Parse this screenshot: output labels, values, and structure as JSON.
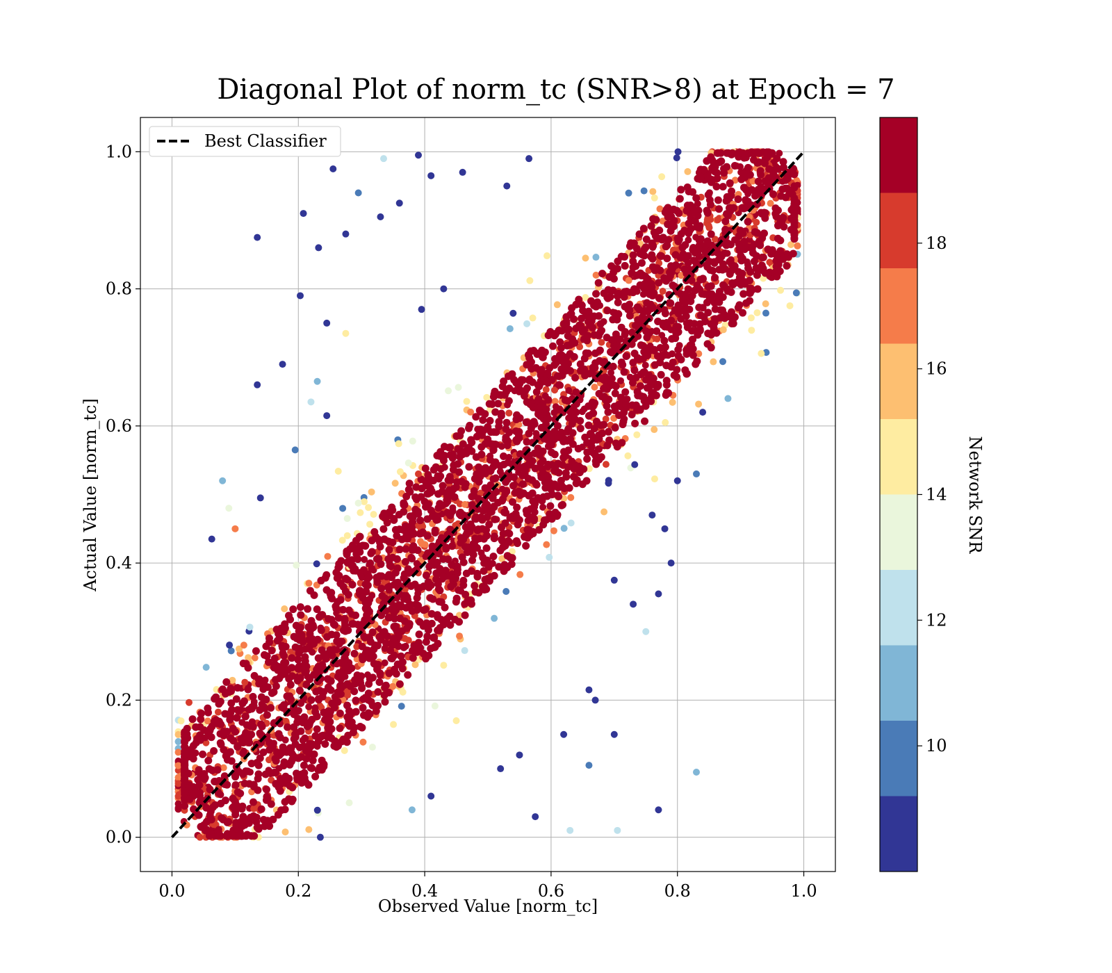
{
  "chart_data": {
    "type": "scatter",
    "title": "Diagonal Plot of norm_tc (SNR>8) at Epoch = 7",
    "xlabel": "Observed Value [norm_tc]",
    "ylabel": "Actual Value [norm_tc]",
    "xlim": [
      -0.05,
      1.05
    ],
    "ylim": [
      -0.05,
      1.05
    ],
    "x_ticks": [
      0.0,
      0.2,
      0.4,
      0.6,
      0.8,
      1.0
    ],
    "y_ticks": [
      0.0,
      0.2,
      0.4,
      0.6,
      0.8,
      1.0
    ],
    "x_tick_labels": [
      "0.0",
      "0.2",
      "0.4",
      "0.6",
      "0.8",
      "1.0"
    ],
    "y_tick_labels": [
      "0.0",
      "0.2",
      "0.4",
      "0.6",
      "0.8",
      "1.0"
    ],
    "grid": true,
    "legend": {
      "position": "top-left",
      "entries": [
        {
          "label": "Best Classifier",
          "style": "dashed",
          "color": "#000000"
        }
      ]
    },
    "reference_line": {
      "label": "Best Classifier",
      "x": [
        0.0,
        1.0
      ],
      "y": [
        0.0,
        1.0
      ]
    },
    "colorbar": {
      "label": "Network SNR",
      "range": [
        8,
        20
      ],
      "tick_values": [
        10,
        12,
        14,
        16,
        18
      ],
      "tick_labels": [
        "10",
        "12",
        "14",
        "16",
        "18"
      ],
      "levels": [
        {
          "from": 8,
          "to": 9.2,
          "color": "#313695"
        },
        {
          "from": 9.2,
          "to": 10.4,
          "color": "#4a7bb7"
        },
        {
          "from": 10.4,
          "to": 11.6,
          "color": "#80b6d6"
        },
        {
          "from": 11.6,
          "to": 12.8,
          "color": "#bfe1ec"
        },
        {
          "from": 12.8,
          "to": 14.0,
          "color": "#eaf6dc"
        },
        {
          "from": 14.0,
          "to": 15.2,
          "color": "#feeca1"
        },
        {
          "from": 15.2,
          "to": 16.4,
          "color": "#fdbf71"
        },
        {
          "from": 16.4,
          "to": 17.6,
          "color": "#f57c4a"
        },
        {
          "from": 17.6,
          "to": 18.8,
          "color": "#d73b2d"
        },
        {
          "from": 18.8,
          "to": 20.0,
          "color": "#a50026"
        }
      ]
    },
    "series": [
      {
        "description_of_distribution": "dense high-SNR band along y=x with lower-SNR outliers",
        "points": [
          {
            "x": 0.135,
            "y": 0.875,
            "snr": 9
          },
          {
            "x": 0.255,
            "y": 0.975,
            "snr": 9
          },
          {
            "x": 0.232,
            "y": 0.86,
            "snr": 9
          },
          {
            "x": 0.208,
            "y": 0.91,
            "snr": 9
          },
          {
            "x": 0.175,
            "y": 0.69,
            "snr": 9
          },
          {
            "x": 0.135,
            "y": 0.66,
            "snr": 9
          },
          {
            "x": 0.203,
            "y": 0.79,
            "snr": 9
          },
          {
            "x": 0.335,
            "y": 0.99,
            "snr": 12
          },
          {
            "x": 0.39,
            "y": 0.995,
            "snr": 9
          },
          {
            "x": 0.41,
            "y": 0.965,
            "snr": 9
          },
          {
            "x": 0.275,
            "y": 0.88,
            "snr": 9
          },
          {
            "x": 0.295,
            "y": 0.94,
            "snr": 10
          },
          {
            "x": 0.33,
            "y": 0.905,
            "snr": 9
          },
          {
            "x": 0.36,
            "y": 0.925,
            "snr": 9
          },
          {
            "x": 0.245,
            "y": 0.75,
            "snr": 9
          },
          {
            "x": 0.275,
            "y": 0.735,
            "snr": 15
          },
          {
            "x": 0.395,
            "y": 0.77,
            "snr": 9
          },
          {
            "x": 0.43,
            "y": 0.8,
            "snr": 9
          },
          {
            "x": 0.46,
            "y": 0.97,
            "snr": 9
          },
          {
            "x": 0.53,
            "y": 0.95,
            "snr": 9
          },
          {
            "x": 0.565,
            "y": 0.99,
            "snr": 9
          },
          {
            "x": 0.08,
            "y": 0.52,
            "snr": 11
          },
          {
            "x": 0.063,
            "y": 0.435,
            "snr": 9
          },
          {
            "x": 0.09,
            "y": 0.48,
            "snr": 13
          },
          {
            "x": 0.1,
            "y": 0.45,
            "snr": 17
          },
          {
            "x": 0.14,
            "y": 0.495,
            "snr": 9
          },
          {
            "x": 0.195,
            "y": 0.565,
            "snr": 10
          },
          {
            "x": 0.22,
            "y": 0.635,
            "snr": 12
          },
          {
            "x": 0.245,
            "y": 0.615,
            "snr": 9
          },
          {
            "x": 0.23,
            "y": 0.665,
            "snr": 11
          },
          {
            "x": 0.39,
            "y": 0.53,
            "snr": 18
          },
          {
            "x": 0.83,
            "y": 0.095,
            "snr": 11
          },
          {
            "x": 0.7,
            "y": 0.15,
            "snr": 9
          },
          {
            "x": 0.77,
            "y": 0.04,
            "snr": 9
          },
          {
            "x": 0.705,
            "y": 0.01,
            "snr": 12
          },
          {
            "x": 0.75,
            "y": 0.3,
            "snr": 12
          },
          {
            "x": 0.79,
            "y": 0.4,
            "snr": 9
          },
          {
            "x": 0.77,
            "y": 0.355,
            "snr": 9
          },
          {
            "x": 0.73,
            "y": 0.34,
            "snr": 9
          },
          {
            "x": 0.7,
            "y": 0.375,
            "snr": 9
          },
          {
            "x": 0.66,
            "y": 0.215,
            "snr": 9
          },
          {
            "x": 0.67,
            "y": 0.2,
            "snr": 9
          },
          {
            "x": 0.575,
            "y": 0.03,
            "snr": 9
          },
          {
            "x": 0.63,
            "y": 0.01,
            "snr": 12
          },
          {
            "x": 0.45,
            "y": 0.17,
            "snr": 15
          },
          {
            "x": 0.62,
            "y": 0.15,
            "snr": 9
          },
          {
            "x": 0.66,
            "y": 0.105,
            "snr": 10
          },
          {
            "x": 0.8,
            "y": 0.52,
            "snr": 9
          },
          {
            "x": 0.83,
            "y": 0.53,
            "snr": 10
          },
          {
            "x": 0.78,
            "y": 0.45,
            "snr": 9
          },
          {
            "x": 0.76,
            "y": 0.47,
            "snr": 9
          },
          {
            "x": 0.88,
            "y": 0.64,
            "snr": 11
          },
          {
            "x": 0.84,
            "y": 0.62,
            "snr": 9
          },
          {
            "x": 0.41,
            "y": 0.06,
            "snr": 9
          },
          {
            "x": 0.38,
            "y": 0.04,
            "snr": 11
          },
          {
            "x": 0.52,
            "y": 0.1,
            "snr": 9
          },
          {
            "x": 0.55,
            "y": 0.12,
            "snr": 9
          }
        ]
      }
    ]
  }
}
